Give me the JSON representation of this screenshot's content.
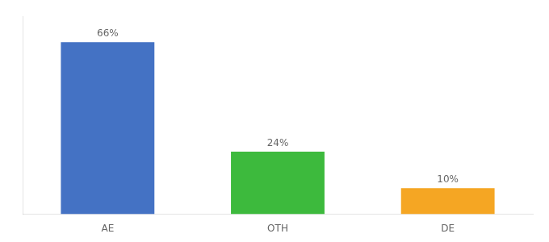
{
  "chart_data": {
    "type": "bar",
    "categories": [
      "AE",
      "OTH",
      "DE"
    ],
    "values": [
      66,
      24,
      10
    ],
    "value_labels": [
      "66%",
      "24%",
      "10%"
    ],
    "data_labels": true,
    "colors": [
      "#4472c4",
      "#3dba3d",
      "#f5a623"
    ],
    "ylim": [
      0,
      76
    ],
    "tick_labels": "x",
    "grid": false
  }
}
